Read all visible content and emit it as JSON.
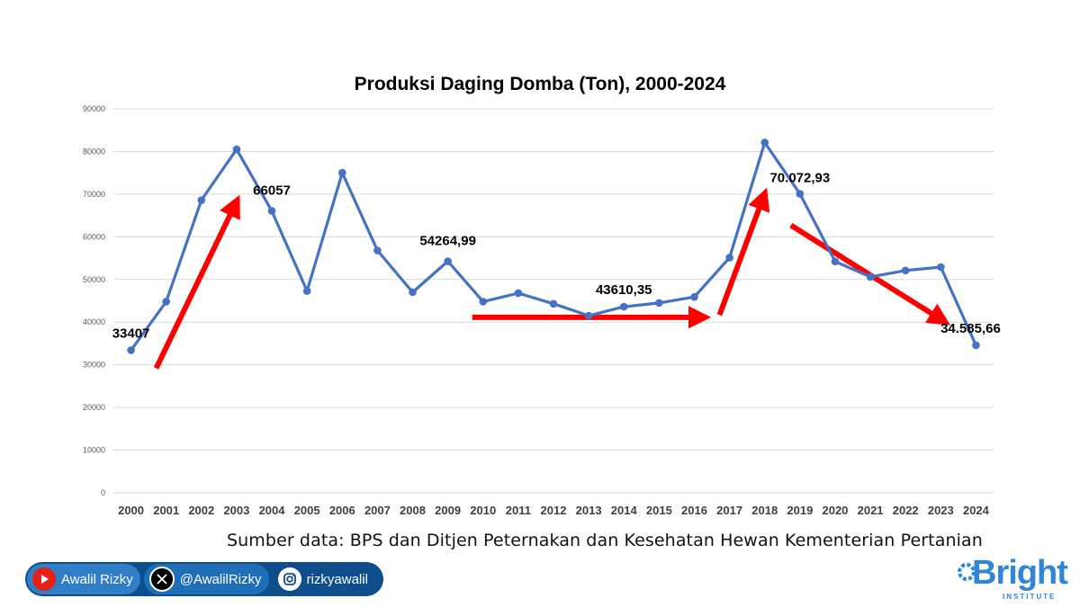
{
  "chart_data": {
    "type": "line",
    "title": "Produksi Daging Domba (Ton), 2000-2024",
    "categories": [
      "2000",
      "2001",
      "2002",
      "2003",
      "2004",
      "2005",
      "2006",
      "2007",
      "2008",
      "2009",
      "2010",
      "2011",
      "2012",
      "2013",
      "2014",
      "2015",
      "2016",
      "2017",
      "2018",
      "2019",
      "2020",
      "2021",
      "2022",
      "2023",
      "2024"
    ],
    "series": [
      {
        "values": [
          33407,
          44800,
          68600,
          80500,
          66057,
          47300,
          75000,
          56800,
          47000,
          54264.99,
          44800,
          46800,
          44300,
          41500,
          43610.35,
          44500,
          45900,
          55100,
          82100,
          70072.93,
          54200,
          50600,
          52100,
          52900,
          34585.66
        ]
      }
    ],
    "ylim": [
      0,
      90000
    ],
    "yticks": [
      "0",
      "10000",
      "20000",
      "30000",
      "40000",
      "50000",
      "60000",
      "70000",
      "80000",
      "90000"
    ],
    "grid": true,
    "line_color": "#4472c4",
    "annotations": [
      {
        "text": "33407",
        "year": "2000"
      },
      {
        "text": "66057",
        "year": "2004"
      },
      {
        "text": "54264,99",
        "year": "2009"
      },
      {
        "text": "43610,35",
        "year": "2014"
      },
      {
        "text": "70.072,93",
        "year": "2019"
      },
      {
        "text": "34.585,66",
        "year": "2024"
      }
    ],
    "trend_arrows": [
      {
        "from": "2000",
        "to": "2003",
        "direction": "up"
      },
      {
        "from": "2010",
        "to": "2016",
        "direction": "flat"
      },
      {
        "from": "2016",
        "to": "2018",
        "direction": "up"
      },
      {
        "from": "2019",
        "to": "2023",
        "direction": "down"
      }
    ],
    "arrow_color": "#ff0000"
  },
  "source_text": "Sumber data: BPS dan Ditjen Peternakan dan Kesehatan Hewan Kementerian Pertanian",
  "socials": {
    "youtube": {
      "label": "Awalil Rizky",
      "icon": "youtube-icon"
    },
    "x": {
      "label": "@AwalilRizky",
      "icon": "x-icon"
    },
    "instagram": {
      "label": "rizkyawalil",
      "icon": "instagram-icon"
    }
  },
  "logo": {
    "word": "Bright",
    "sub": "INSTITUTE"
  }
}
